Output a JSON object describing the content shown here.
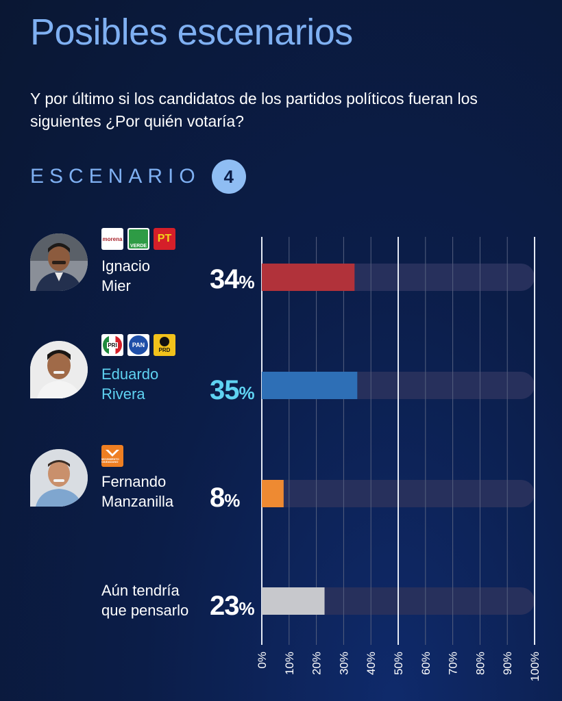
{
  "title": "Posibles escenarios",
  "question": "Y por último si los candidatos de los partidos políticos fueran los siguientes ¿Por quién votaría?",
  "scenario": {
    "label": "ESCENARIO",
    "number": "4"
  },
  "candidates": [
    {
      "name_line1": "Ignacio",
      "name_line2": "Mier",
      "pct": "34",
      "pct_symbol": "%",
      "parties": [
        {
          "label": "morena"
        },
        {
          "label": "VERDE"
        },
        {
          "label": "PT"
        }
      ]
    },
    {
      "name_line1": "Eduardo",
      "name_line2": "Rivera",
      "pct": "35",
      "pct_symbol": "%",
      "parties": [
        {
          "label": "PRI"
        },
        {
          "label": "PAN"
        },
        {
          "label": "PRD"
        }
      ]
    },
    {
      "name_line1": "Fernando",
      "name_line2": "Manzanilla",
      "pct": "8",
      "pct_symbol": "%",
      "parties": [
        {
          "label": "MOVIMIENTO CIUDADANO"
        }
      ]
    },
    {
      "name_line1": "Aún tendría",
      "name_line2": "que pensarlo",
      "pct": "23",
      "pct_symbol": "%",
      "parties": []
    }
  ],
  "colors": {
    "title": "#7fb0f2",
    "highlight_text": "#5fd3f2",
    "track": "#27305c",
    "morena": "#a8232b",
    "verde": "#2e9b45",
    "pt": "#d51f29",
    "pri_green": "#1f8a3d",
    "pan": "#1f4fa8",
    "prd": "#f2c21b",
    "mc": "#ef7f22"
  },
  "chart_data": {
    "type": "bar",
    "orientation": "horizontal",
    "categories": [
      "Ignacio Mier",
      "Eduardo Rivera",
      "Fernando Manzanilla",
      "Aún tendría que pensarlo"
    ],
    "values": [
      34,
      35,
      8,
      23
    ],
    "bar_colors": [
      "#b1323a",
      "#2e6fb6",
      "#ee8a32",
      "#c7c8cc"
    ],
    "xlim": [
      0,
      100
    ],
    "xticks": [
      0,
      10,
      20,
      30,
      40,
      50,
      60,
      70,
      80,
      90,
      100
    ],
    "xtick_labels": [
      "0%",
      "10%",
      "20%",
      "30%",
      "40%",
      "50%",
      "60%",
      "70%",
      "80%",
      "90%",
      "100%"
    ],
    "grid": true
  }
}
